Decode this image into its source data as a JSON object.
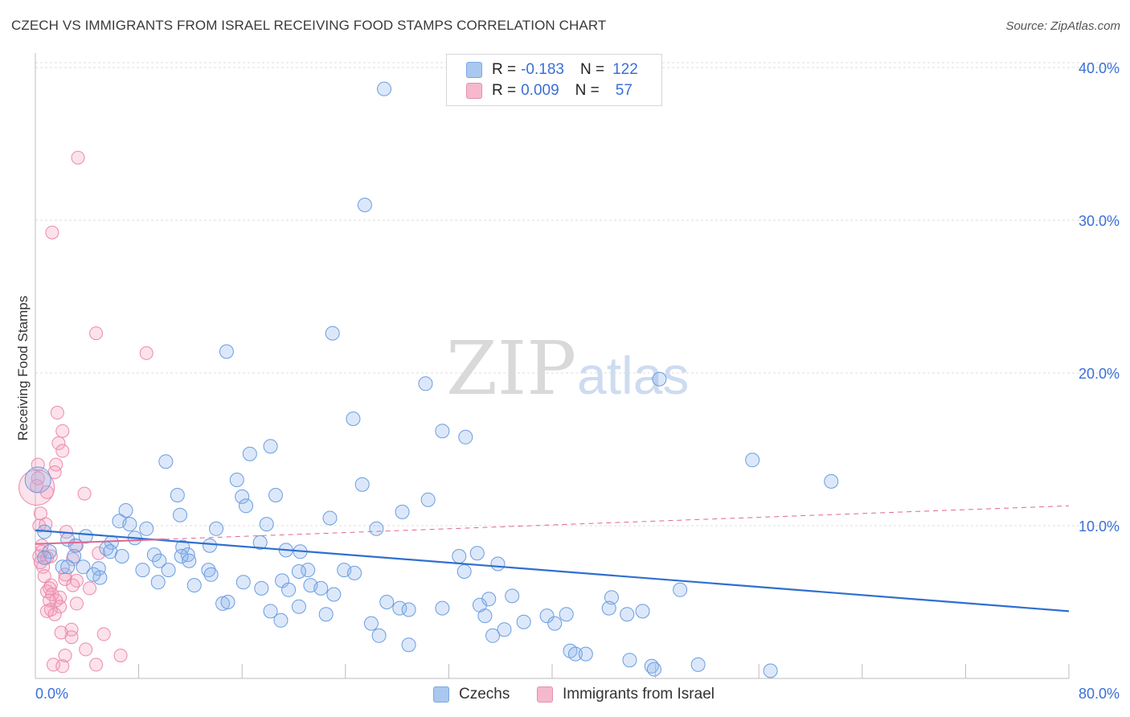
{
  "header": {
    "title": "CZECH VS IMMIGRANTS FROM ISRAEL RECEIVING FOOD STAMPS CORRELATION CHART",
    "source": "Source: ZipAtlas.com"
  },
  "watermark": {
    "zip": "ZIP",
    "atlas": "atlas"
  },
  "legend": {
    "rows": [
      {
        "r_label": "R =",
        "r_value": "-0.183",
        "n_label": "N =",
        "n_value": "122",
        "color": "#a8c8f0",
        "border": "#7aa8e0"
      },
      {
        "r_label": "R =",
        "r_value": "0.009",
        "n_label": "N =",
        "n_value": "57",
        "color": "#f6b8cc",
        "border": "#e890ae"
      }
    ]
  },
  "bottom_legend": {
    "czechs": "Czechs",
    "israel": "Immigrants from Israel"
  },
  "colors": {
    "blue_fill": "rgba(138,180,236,0.30)",
    "blue_stroke": "#6a9de0",
    "blue_line": "#2f6fd0",
    "pink_fill": "rgba(244,160,190,0.30)",
    "pink_stroke": "#ea8aac",
    "pink_line": "#e06690",
    "axis_label": "#3a6fd8",
    "grid": "#dcdcdc"
  },
  "chart_data": {
    "type": "scatter",
    "title": "CZECH VS IMMIGRANTS FROM ISRAEL RECEIVING FOOD STAMPS CORRELATION CHART",
    "ylabel": "Receiving Food Stamps",
    "xlabel": "",
    "xlim": [
      0,
      80
    ],
    "ylim": [
      0,
      40
    ],
    "x_tick_labels": [
      "0.0%",
      "80.0%"
    ],
    "y_ticks": [
      10,
      20,
      30,
      40
    ],
    "y_tick_labels": [
      "10.0%",
      "20.0%",
      "30.0%",
      "40.0%"
    ],
    "grid": true,
    "legend_placement": "top-center",
    "series": [
      {
        "name": "Czechs",
        "r": -0.183,
        "n": 122,
        "trend": {
          "x": [
            0,
            80
          ],
          "y": [
            9.7,
            4.4
          ]
        },
        "points": [
          [
            27,
            38.6
          ],
          [
            25.5,
            31
          ],
          [
            23,
            22.6
          ],
          [
            14.8,
            21.4
          ],
          [
            30.2,
            19.3
          ],
          [
            48.3,
            19.6
          ],
          [
            24.6,
            17
          ],
          [
            31.5,
            16.2
          ],
          [
            33.3,
            15.8
          ],
          [
            18.2,
            15.2
          ],
          [
            16.6,
            14.7
          ],
          [
            55.5,
            14.3
          ],
          [
            10.1,
            14.2
          ],
          [
            61.6,
            12.9
          ],
          [
            15.6,
            13
          ],
          [
            25.3,
            12.7
          ],
          [
            11,
            12
          ],
          [
            16,
            11.9
          ],
          [
            18.6,
            12
          ],
          [
            30.4,
            11.7
          ],
          [
            16.3,
            11.3
          ],
          [
            28.4,
            10.9
          ],
          [
            7,
            11
          ],
          [
            11.2,
            10.7
          ],
          [
            22.8,
            10.5
          ],
          [
            6.5,
            10.3
          ],
          [
            17.9,
            10.1
          ],
          [
            7.3,
            10.1
          ],
          [
            8.6,
            9.8
          ],
          [
            14,
            9.8
          ],
          [
            3.9,
            9.3
          ],
          [
            0.7,
            9.6
          ],
          [
            2.5,
            9.1
          ],
          [
            5.9,
            8.9
          ],
          [
            11.4,
            8.6
          ],
          [
            13.5,
            8.7
          ],
          [
            17.4,
            8.9
          ],
          [
            3.1,
            8.7
          ],
          [
            5.5,
            8.5
          ],
          [
            1.1,
            8.3
          ],
          [
            5.8,
            8.3
          ],
          [
            3,
            8
          ],
          [
            9.2,
            8.1
          ],
          [
            11.8,
            8.1
          ],
          [
            19.4,
            8.4
          ],
          [
            20.5,
            8.3
          ],
          [
            6.7,
            8
          ],
          [
            32.8,
            8
          ],
          [
            34.2,
            8.2
          ],
          [
            0.7,
            7.9
          ],
          [
            9.6,
            7.7
          ],
          [
            11.3,
            8
          ],
          [
            11.9,
            7.7
          ],
          [
            4.9,
            7.2
          ],
          [
            2.1,
            7.3
          ],
          [
            3.7,
            7.3
          ],
          [
            2.5,
            7.3
          ],
          [
            8.3,
            7.1
          ],
          [
            10.3,
            7.1
          ],
          [
            13.4,
            7.1
          ],
          [
            21.1,
            7.1
          ],
          [
            23.9,
            7.1
          ],
          [
            24.7,
            6.9
          ],
          [
            33.2,
            7
          ],
          [
            35.8,
            7.5
          ],
          [
            13.6,
            6.8
          ],
          [
            5,
            6.6
          ],
          [
            19.1,
            6.4
          ],
          [
            9.5,
            6.3
          ],
          [
            12.3,
            6.1
          ],
          [
            16.1,
            6.3
          ],
          [
            21.3,
            6.1
          ],
          [
            22.1,
            5.9
          ],
          [
            17.5,
            5.9
          ],
          [
            19.6,
            5.8
          ],
          [
            23.1,
            5.5
          ],
          [
            36.9,
            5.4
          ],
          [
            44.6,
            5.3
          ],
          [
            49.9,
            5.8
          ],
          [
            14.5,
            4.9
          ],
          [
            14.9,
            5
          ],
          [
            27.2,
            5
          ],
          [
            28.2,
            4.6
          ],
          [
            31.5,
            4.6
          ],
          [
            34.4,
            4.8
          ],
          [
            35.1,
            5.2
          ],
          [
            20.4,
            4.7
          ],
          [
            28.9,
            4.5
          ],
          [
            18.2,
            4.4
          ],
          [
            41.1,
            4.2
          ],
          [
            44.4,
            4.6
          ],
          [
            45.8,
            4.2
          ],
          [
            47,
            4.4
          ],
          [
            22.5,
            4.2
          ],
          [
            34.8,
            4.1
          ],
          [
            39.6,
            4.1
          ],
          [
            19,
            3.8
          ],
          [
            26,
            3.6
          ],
          [
            37.8,
            3.7
          ],
          [
            40.2,
            3.6
          ],
          [
            36.3,
            3.2
          ],
          [
            26.6,
            2.8
          ],
          [
            35.4,
            2.8
          ],
          [
            28.9,
            2.2
          ],
          [
            41.4,
            1.8
          ],
          [
            41.8,
            1.6
          ],
          [
            42.6,
            1.6
          ],
          [
            46,
            1.2
          ],
          [
            47.7,
            0.8
          ],
          [
            47.9,
            0.6
          ],
          [
            51.3,
            0.9
          ],
          [
            56.9,
            0.5
          ],
          [
            20.4,
            7
          ],
          [
            4.5,
            6.8
          ],
          [
            26.4,
            9.8
          ],
          [
            7.7,
            9.2
          ]
        ]
      },
      {
        "name": "Immigrants from Israel",
        "r": 0.009,
        "n": 57,
        "trend": {
          "x": [
            0,
            80
          ],
          "y": [
            8.8,
            11.3
          ]
        },
        "points": [
          [
            3.3,
            34.1
          ],
          [
            1.3,
            29.2
          ],
          [
            4.7,
            22.6
          ],
          [
            8.6,
            21.3
          ],
          [
            1.7,
            17.4
          ],
          [
            2.1,
            16.2
          ],
          [
            1.8,
            15.4
          ],
          [
            2.1,
            14.9
          ],
          [
            0.2,
            14
          ],
          [
            1.6,
            14
          ],
          [
            1.5,
            13.5
          ],
          [
            0.2,
            13.1
          ],
          [
            0.1,
            12.6
          ],
          [
            0.9,
            12.2
          ],
          [
            3.8,
            12.1
          ],
          [
            0.4,
            10.8
          ],
          [
            0.3,
            10
          ],
          [
            0.8,
            10.1
          ],
          [
            2.4,
            9.6
          ],
          [
            0.5,
            8.7
          ],
          [
            3.2,
            8.7
          ],
          [
            0.5,
            8.3
          ],
          [
            4.9,
            8.2
          ],
          [
            0.3,
            8
          ],
          [
            1.2,
            8
          ],
          [
            0.9,
            7.9
          ],
          [
            2.9,
            7.8
          ],
          [
            0.4,
            7.6
          ],
          [
            0.6,
            7.3
          ],
          [
            2.3,
            6.8
          ],
          [
            2.3,
            6.5
          ],
          [
            3.2,
            6.4
          ],
          [
            1.2,
            6.1
          ],
          [
            2.9,
            6.1
          ],
          [
            1.1,
            5.9
          ],
          [
            4.2,
            5.9
          ],
          [
            0.9,
            5.7
          ],
          [
            1.3,
            5.5
          ],
          [
            1.9,
            5.3
          ],
          [
            1.6,
            5.1
          ],
          [
            1.1,
            5.1
          ],
          [
            3.2,
            4.9
          ],
          [
            1.9,
            4.7
          ],
          [
            1.2,
            4.5
          ],
          [
            0.9,
            4.4
          ],
          [
            2.8,
            3.2
          ],
          [
            2,
            3
          ],
          [
            5.3,
            2.9
          ],
          [
            2.8,
            2.7
          ],
          [
            3.9,
            1.9
          ],
          [
            2.3,
            1.5
          ],
          [
            1.4,
            0.9
          ],
          [
            2.1,
            0.8
          ],
          [
            4.7,
            0.9
          ],
          [
            6.6,
            1.5
          ],
          [
            1.5,
            4.2
          ],
          [
            0.7,
            6.7
          ]
        ]
      }
    ]
  }
}
